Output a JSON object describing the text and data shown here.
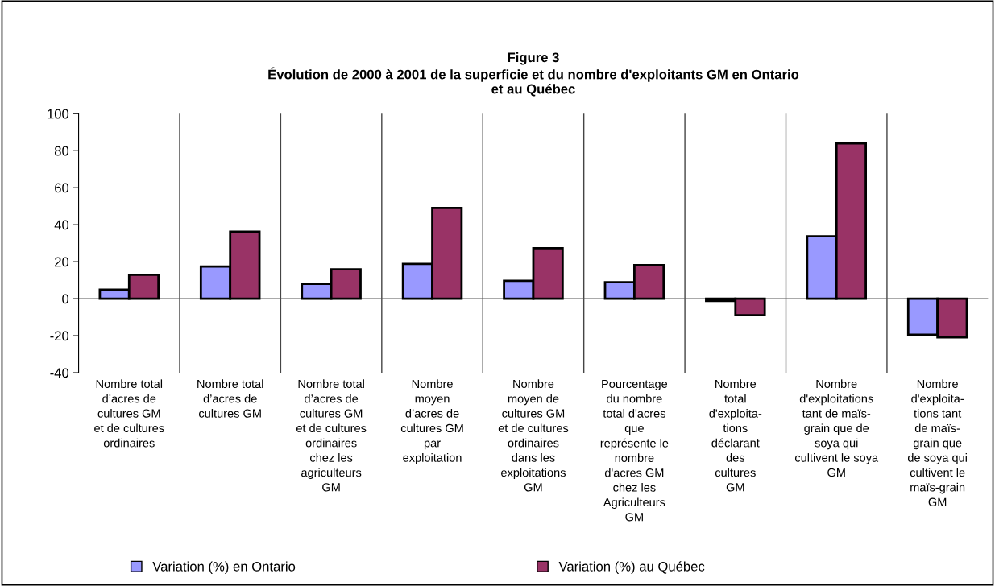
{
  "chart_data": {
    "type": "bar",
    "title": "Figure 3\nÉvolution de 2000 à 2001 de la superficie et du nombre d'exploitants GM en Ontario\net au Québec",
    "categories": [
      "Nombre total\nd’acres de\ncultures GM\net de cultures\nordinaires",
      "Nombre total\nd’acres de\ncultures GM",
      "Nombre total\nd’acres de\ncultures GM\net de cultures\nordinaires\nchez les\nagriculteurs\nGM",
      "Nombre\nmoyen\nd’acres de\ncultures GM\npar\nexploitation",
      "Nombre\nmoyen de\ncultures GM\net de cultures\nordinaires\ndans les\nexploitations\nGM",
      "Pourcentage\ndu nombre\ntotal d'acres\nque\nreprésente le\nnombre\nd'acres GM\nchez les\nAgriculteurs\nGM",
      "Nombre\ntotal\nd'exploita-\ntions\ndéclarant\ndes\ncultures\nGM",
      "Nombre\nd'exploitations\ntant de maïs-\ngrain que de\nsoya qui\ncultivent le soya\nGM",
      "Nombre\nd'exploita-\ntions tant\nde maïs-\ngrain que\nde soya qui\ncultivent le\nmaïs-grain\nGM"
    ],
    "series": [
      {
        "name": "Variation (%) en Ontario",
        "color": "#9999ff",
        "values": [
          4.9,
          17.4,
          8.0,
          18.8,
          9.7,
          8.9,
          -1.2,
          33.7,
          -19.5
        ]
      },
      {
        "name": "Variation (%) au Québec",
        "color": "#993366",
        "values": [
          12.9,
          36.2,
          15.9,
          49.0,
          27.3,
          18.1,
          -8.9,
          84.0,
          -20.9
        ]
      }
    ],
    "ylim": [
      -40,
      100
    ],
    "yticks": [
      -40,
      -20,
      0,
      20,
      40,
      60,
      80,
      100
    ],
    "grid": "x",
    "legend": "bottom"
  }
}
